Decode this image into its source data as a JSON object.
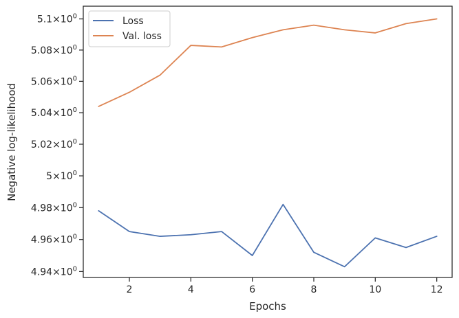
{
  "chart_data": {
    "type": "line",
    "xlabel": "Epochs",
    "ylabel": "Negative log-likelihood",
    "x": [
      1,
      2,
      3,
      4,
      5,
      6,
      7,
      8,
      9,
      10,
      11,
      12
    ],
    "xlim": [
      0.5,
      12.5
    ],
    "ylim": [
      4.9363,
      5.1082
    ],
    "y_scale": "log",
    "x_ticks": [
      2,
      4,
      6,
      8,
      10,
      12
    ],
    "y_ticks": [
      {
        "value": 4.94,
        "mantissa": "4.94",
        "base": "10",
        "exp": "0"
      },
      {
        "value": 4.96,
        "mantissa": "4.96",
        "base": "10",
        "exp": "0"
      },
      {
        "value": 4.98,
        "mantissa": "4.98",
        "base": "10",
        "exp": "0"
      },
      {
        "value": 5.0,
        "mantissa": "5",
        "base": "10",
        "exp": "0"
      },
      {
        "value": 5.02,
        "mantissa": "5.02",
        "base": "10",
        "exp": "0"
      },
      {
        "value": 5.04,
        "mantissa": "5.04",
        "base": "10",
        "exp": "0"
      },
      {
        "value": 5.06,
        "mantissa": "5.06",
        "base": "10",
        "exp": "0"
      },
      {
        "value": 5.08,
        "mantissa": "5.08",
        "base": "10",
        "exp": "0"
      },
      {
        "value": 5.1,
        "mantissa": "5.1",
        "base": "10",
        "exp": "0"
      }
    ],
    "series": [
      {
        "name": "Loss",
        "color": "#4c72b0",
        "values": [
          4.978,
          4.965,
          4.962,
          4.963,
          4.965,
          4.95,
          4.982,
          4.952,
          4.943,
          4.961,
          4.955,
          4.962
        ]
      },
      {
        "name": "Val. loss",
        "color": "#dd8452",
        "values": [
          5.044,
          5.053,
          5.064,
          5.083,
          5.082,
          5.088,
          5.093,
          5.096,
          5.093,
          5.091,
          5.097,
          5.1
        ]
      }
    ],
    "grid": false,
    "legend_position": "top-left"
  }
}
